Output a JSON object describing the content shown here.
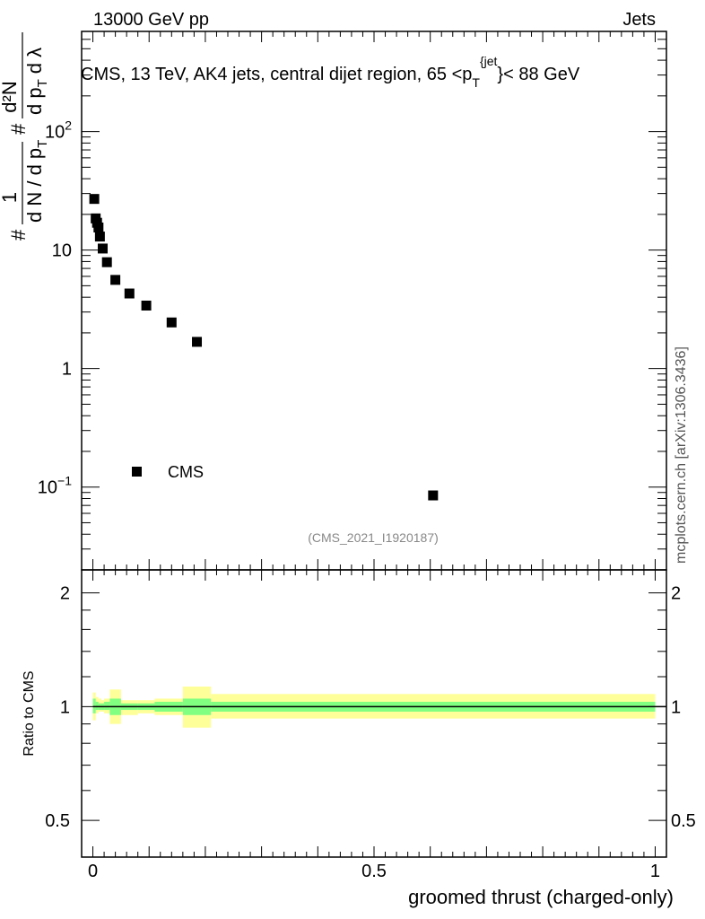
{
  "header": {
    "left": "13000 GeV pp",
    "right": "Jets"
  },
  "title": "CMS, 13 TeV, AK4 jets, central dijet region, 65 <p_T^{jet}< 88 GeV",
  "title_parts": {
    "before": "CMS, 13 TeV, AK4 jets, central dijet region, 65 <p",
    "sub": "T",
    "sup": "{jet",
    "after": "}< 88 GeV"
  },
  "ylabel_main": "1/dN/dp_T # d²N/dp_T # dλ",
  "ylabel_main_parts": {
    "hash1": "#",
    "frac1_num": "1",
    "frac1_den": "d N / d p",
    "frac1_den_sub": "T",
    "hash2": "#",
    "frac2_num": "d²N",
    "frac2_den": "d p",
    "frac2_den_sub": "T",
    "frac2_tail": "d λ"
  },
  "ylabel_ratio": "Ratio to CMS",
  "xlabel": "groomed thrust (charged-only)",
  "watermark": "mcplots.cern.ch [arXiv:1306.3436]",
  "analysis_id": "(CMS_2021_I1920187)",
  "legend": [
    {
      "label": "CMS",
      "marker": "square"
    }
  ],
  "colors": {
    "data": "#000000",
    "band_outer": "#ffff99",
    "band_inner": "#80ff80"
  },
  "chart_data": [
    {
      "type": "scatter",
      "yscale": "log",
      "xlim": [
        -0.02,
        1.02
      ],
      "ylim": [
        0.02,
        700
      ],
      "yticks": [
        {
          "value": 0.1,
          "label": "10^{-1}"
        },
        {
          "value": 1,
          "label": "1"
        },
        {
          "value": 10,
          "label": "10"
        },
        {
          "value": 100,
          "label": "10^{2}"
        }
      ],
      "series": [
        {
          "name": "CMS",
          "x": [
            0.0025,
            0.005,
            0.0075,
            0.01,
            0.0125,
            0.0175,
            0.025,
            0.04,
            0.065,
            0.095,
            0.14,
            0.185,
            0.605
          ],
          "y": [
            27.0,
            18.5,
            17.0,
            15.5,
            13.0,
            10.3,
            7.9,
            5.6,
            4.3,
            3.4,
            2.45,
            1.68,
            0.085
          ]
        }
      ]
    },
    {
      "type": "area",
      "ylim": [
        0.4,
        2.3
      ],
      "yticks": [
        0.5,
        1,
        2
      ],
      "xticks": [
        0,
        0.5,
        1
      ],
      "reference_line": 1,
      "bands": {
        "bin_edges": [
          0.0,
          0.005,
          0.01,
          0.015,
          0.02,
          0.03,
          0.05,
          0.08,
          0.11,
          0.16,
          0.21,
          1.0
        ],
        "outer": [
          [
            0.92,
            1.09
          ],
          [
            0.96,
            1.06
          ],
          [
            0.97,
            1.05
          ],
          [
            0.97,
            1.04
          ],
          [
            0.96,
            1.05
          ],
          [
            0.9,
            1.11
          ],
          [
            0.95,
            1.04
          ],
          [
            0.96,
            1.04
          ],
          [
            0.95,
            1.05
          ],
          [
            0.88,
            1.13
          ],
          [
            0.93,
            1.08
          ]
        ],
        "inner": [
          [
            0.96,
            1.05
          ],
          [
            0.98,
            1.03
          ],
          [
            0.98,
            1.02
          ],
          [
            0.98,
            1.02
          ],
          [
            0.98,
            1.03
          ],
          [
            0.95,
            1.05
          ],
          [
            0.98,
            1.02
          ],
          [
            0.98,
            1.02
          ],
          [
            0.97,
            1.03
          ],
          [
            0.95,
            1.05
          ],
          [
            0.97,
            1.03
          ]
        ]
      }
    }
  ]
}
